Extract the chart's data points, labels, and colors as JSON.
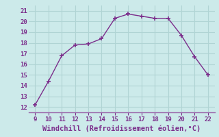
{
  "x": [
    9,
    10,
    11,
    12,
    13,
    14,
    15,
    16,
    17,
    18,
    19,
    20,
    21,
    22
  ],
  "y": [
    12.2,
    14.4,
    16.8,
    17.8,
    17.9,
    18.4,
    20.3,
    20.7,
    20.5,
    20.3,
    20.3,
    18.7,
    16.7,
    15.0
  ],
  "xlabel": "Windchill (Refroidissement éolien,°C)",
  "xlim": [
    8.5,
    22.5
  ],
  "ylim": [
    11.5,
    21.5
  ],
  "xticks": [
    9,
    10,
    11,
    12,
    13,
    14,
    15,
    16,
    17,
    18,
    19,
    20,
    21,
    22
  ],
  "yticks": [
    12,
    13,
    14,
    15,
    16,
    17,
    18,
    19,
    20,
    21
  ],
  "line_color": "#7b2d8b",
  "marker_color": "#7b2d8b",
  "bg_color": "#cceaea",
  "grid_color": "#b0d4d4",
  "xlabel_color": "#7b2d8b",
  "tick_color": "#7b2d8b",
  "spine_color": "#9966aa",
  "font_size_axis": 6.5,
  "font_size_label": 7.5
}
